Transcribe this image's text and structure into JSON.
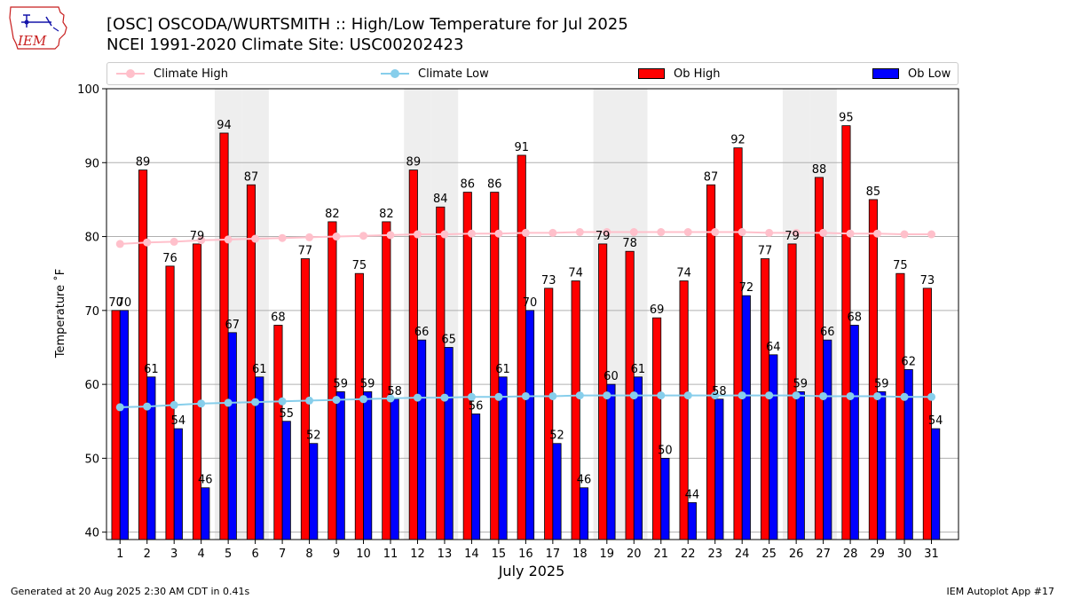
{
  "header": {
    "logo_text": "IEM",
    "title_line1": "[OSC] OSCODA/WURTSMITH :: High/Low Temperature for Jul 2025",
    "title_line2": "NCEI 1991-2020 Climate Site: USC00202423"
  },
  "legend": {
    "items": [
      {
        "label": "Climate High",
        "kind": "line",
        "color": "#ffc0cb"
      },
      {
        "label": "Climate Low",
        "kind": "line",
        "color": "#87ceeb"
      },
      {
        "label": "Ob High",
        "kind": "bar",
        "color": "#ff0000"
      },
      {
        "label": "Ob Low",
        "kind": "bar",
        "color": "#0000ff"
      }
    ],
    "placement": "top, horizontal, above plot"
  },
  "footer": {
    "left": "Generated at 20 Aug 2025 2:30 AM CDT in 0.41s",
    "right": "IEM Autoplot App #17"
  },
  "chart_data": {
    "type": "bar",
    "xlabel": "July 2025",
    "ylabel": "Temperature ˚F",
    "ylim": [
      39,
      100
    ],
    "yticks": [
      40,
      50,
      60,
      70,
      80,
      90,
      100
    ],
    "grid": "horizontal",
    "categories": [
      "1",
      "2",
      "3",
      "4",
      "5",
      "6",
      "7",
      "8",
      "9",
      "10",
      "11",
      "12",
      "13",
      "14",
      "15",
      "16",
      "17",
      "18",
      "19",
      "20",
      "21",
      "22",
      "23",
      "24",
      "25",
      "26",
      "27",
      "28",
      "29",
      "30",
      "31"
    ],
    "weekend_shading_days": [
      5,
      6,
      12,
      13,
      19,
      20,
      26,
      27
    ],
    "series": [
      {
        "name": "Ob High",
        "kind": "bar",
        "color": "#ff0000",
        "values": [
          70,
          89,
          76,
          79,
          94,
          87,
          68,
          77,
          82,
          75,
          82,
          89,
          84,
          86,
          86,
          91,
          73,
          74,
          79,
          78,
          69,
          74,
          87,
          92,
          77,
          79,
          88,
          95,
          85,
          75,
          73
        ],
        "labels": [
          "70",
          "89",
          "76",
          "79",
          "94",
          "87",
          "68",
          "77",
          "82",
          "75",
          "82",
          "89",
          "84",
          "86",
          "86",
          "91",
          "73",
          "74",
          "79",
          "78",
          "69",
          "74",
          "87",
          "92",
          "77",
          "79",
          "88",
          "95",
          "85",
          "75",
          "73"
        ]
      },
      {
        "name": "Ob Low",
        "kind": "bar",
        "color": "#0000ff",
        "values": [
          70,
          61,
          54,
          46,
          67,
          61,
          55,
          52,
          59,
          59,
          58,
          66,
          65,
          56,
          61,
          70,
          52,
          46,
          60,
          61,
          50,
          44,
          58,
          72,
          64,
          59,
          66,
          68,
          59,
          62,
          54
        ],
        "labels": [
          "70",
          "61",
          "54",
          "46",
          "67",
          "61",
          "55",
          "52",
          "59",
          "59",
          "58",
          "66",
          "65",
          "56",
          "61",
          "70",
          "52",
          "46",
          "60",
          "61",
          "50",
          "44",
          "58",
          "72",
          "64",
          "59",
          "66",
          "68",
          "59",
          "62",
          "54"
        ]
      },
      {
        "name": "Climate High",
        "kind": "line",
        "color": "#ffc0cb",
        "values": [
          79.0,
          79.2,
          79.3,
          79.5,
          79.6,
          79.7,
          79.8,
          79.9,
          80.0,
          80.1,
          80.2,
          80.3,
          80.3,
          80.4,
          80.4,
          80.5,
          80.5,
          80.6,
          80.6,
          80.6,
          80.6,
          80.6,
          80.6,
          80.6,
          80.5,
          80.5,
          80.5,
          80.4,
          80.4,
          80.3,
          80.3
        ]
      },
      {
        "name": "Climate Low",
        "kind": "line",
        "color": "#87ceeb",
        "values": [
          56.9,
          57.0,
          57.2,
          57.4,
          57.5,
          57.6,
          57.7,
          57.8,
          57.9,
          58.0,
          58.1,
          58.2,
          58.2,
          58.3,
          58.3,
          58.4,
          58.4,
          58.5,
          58.5,
          58.5,
          58.5,
          58.5,
          58.5,
          58.5,
          58.5,
          58.5,
          58.4,
          58.4,
          58.4,
          58.3,
          58.3
        ]
      }
    ]
  }
}
